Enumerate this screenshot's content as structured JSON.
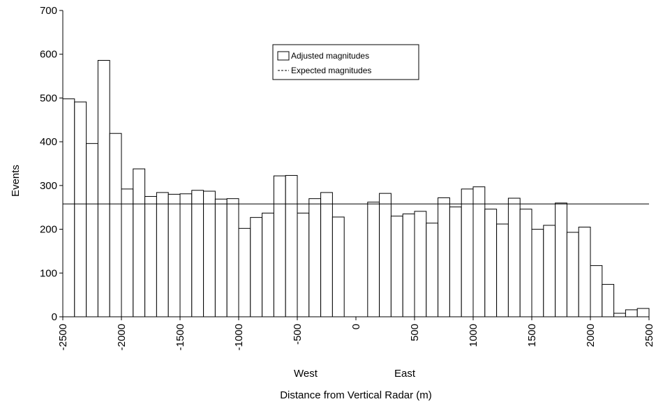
{
  "chart_data": {
    "type": "bar",
    "xlabel": "Distance from Vertical Radar (m)",
    "ylabel": "Events",
    "xlim": [
      -2500,
      2500
    ],
    "ylim": [
      0,
      700
    ],
    "bin_width": 100,
    "x_ticks": [
      -2500,
      -2000,
      -1500,
      -1000,
      -500,
      0,
      500,
      1000,
      1500,
      2000,
      2500
    ],
    "x_tick_labels": [
      "-2500",
      "-2000",
      "-1500",
      "-1000",
      "-500",
      "0",
      "500",
      "1000",
      "1500",
      "2000",
      "2500"
    ],
    "y_ticks": [
      0,
      100,
      200,
      300,
      400,
      500,
      600,
      700
    ],
    "y_tick_labels": [
      "0",
      "100",
      "200",
      "300",
      "400",
      "500",
      "600",
      "700"
    ],
    "side_labels": {
      "west": "West",
      "east": "East"
    },
    "series": [
      {
        "name": "Adjusted magnitudes",
        "bins_start": [
          -2500,
          -2400,
          -2300,
          -2200,
          -2100,
          -2000,
          -1900,
          -1800,
          -1700,
          -1600,
          -1500,
          -1400,
          -1300,
          -1200,
          -1100,
          -1000,
          -900,
          -800,
          -700,
          -600,
          -500,
          -400,
          -300,
          -200,
          -100,
          0,
          100,
          200,
          300,
          400,
          500,
          600,
          700,
          800,
          900,
          1000,
          1100,
          1200,
          1300,
          1400,
          1500,
          1600,
          1700,
          1800,
          1900,
          2000,
          2100,
          2200,
          2300,
          2400
        ],
        "values": [
          498,
          491,
          396,
          586,
          419,
          292,
          338,
          275,
          284,
          280,
          281,
          289,
          287,
          269,
          270,
          202,
          227,
          237,
          322,
          323,
          237,
          270,
          284,
          228,
          0,
          0,
          262,
          282,
          230,
          235,
          241,
          214,
          272,
          251,
          292,
          297,
          246,
          212,
          271,
          246,
          200,
          209,
          260,
          193,
          205,
          117,
          74,
          8,
          16,
          19
        ]
      },
      {
        "name": "Expected magnitudes",
        "type": "hline",
        "value": 258
      }
    ],
    "legend": {
      "position": "top-center",
      "entries": [
        "Adjusted magnitudes",
        "Expected magnitudes"
      ]
    },
    "grid": false
  },
  "colors": {
    "bar_fill": "#ffffff",
    "bar_stroke": "#000000",
    "axis": "#000000",
    "background": "#ffffff"
  }
}
